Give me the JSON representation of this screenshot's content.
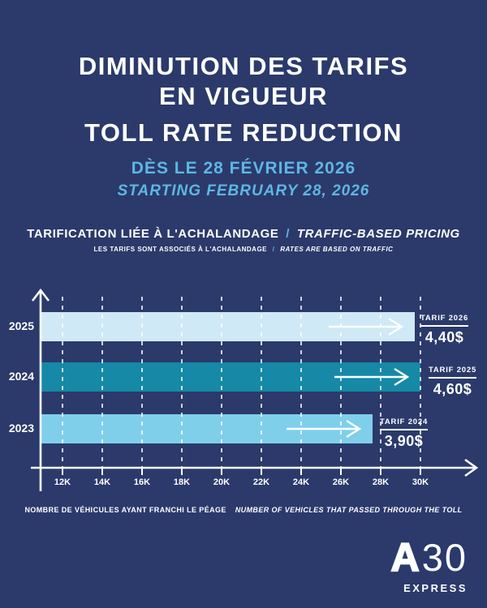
{
  "title": {
    "line1": "DIMINUTION DES TARIFS",
    "line2": "EN VIGUEUR",
    "line3": "TOLL RATE REDUCTION"
  },
  "date": {
    "fr": "DÈS LE 28 FÉVRIER 2026",
    "en": "STARTING FEBRUARY 28, 2026"
  },
  "section": {
    "fr": "TARIFICATION LIÉE À L'ACHALANDAGE",
    "sep": "/",
    "en": "TRAFFIC-BASED PRICING",
    "sub_fr": "LES TARIFS SONT ASSOCIÉS À L'ACHALANDAGE",
    "sub_sep": "/",
    "sub_en": "RATES ARE BASED ON TRAFFIC"
  },
  "chart_data": {
    "type": "bar",
    "orientation": "horizontal",
    "categories": [
      "2025",
      "2024",
      "2023"
    ],
    "values": [
      29700,
      30000,
      27600
    ],
    "bars": [
      {
        "year": "2025",
        "vehicles": 29700,
        "color": "#CFE9F6",
        "tarif_label": "TARIF 2026",
        "tarif_value": "4,40$"
      },
      {
        "year": "2024",
        "vehicles": 30000,
        "color": "#1689A6",
        "tarif_label": "TARIF 2025",
        "tarif_value": "4,60$"
      },
      {
        "year": "2023",
        "vehicles": 27600,
        "color": "#7FCFEA",
        "tarif_label": "TARIF 2024",
        "tarif_value": "3,90$"
      }
    ],
    "x_ticks": [
      "12K",
      "14K",
      "16K",
      "18K",
      "20K",
      "22K",
      "24K",
      "26K",
      "28K",
      "30K"
    ],
    "xlim": [
      10900,
      31200
    ],
    "grid": "dashed-vertical",
    "legend": "none",
    "xlabel_fr": "NOMBRE DE VÉHICULES AYANT FRANCHI LE PÉAGE",
    "xlabel_en": "NUMBER OF VEHICLES THAT PASSED THROUGH THE TOLL"
  },
  "logo": {
    "a": "A",
    "num": "30",
    "sub": "EXPRESS"
  },
  "colors": {
    "background": "#2B3A6B",
    "accent_blue": "#5EB6E4",
    "bar_2025": "#CFE9F6",
    "bar_2024": "#1689A6",
    "bar_2023": "#7FCFEA",
    "text": "#FFFFFF"
  }
}
